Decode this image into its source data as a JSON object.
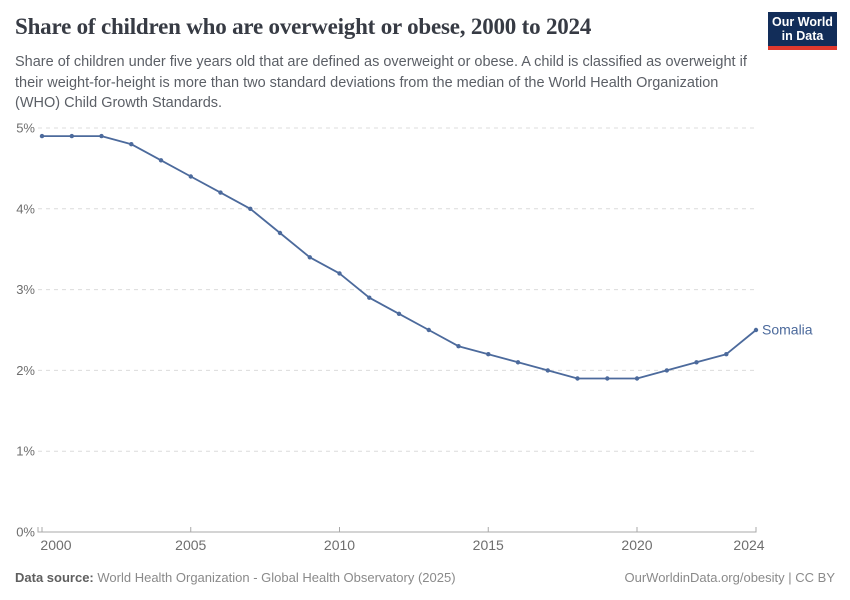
{
  "header": {
    "title": "Share of children who are overweight or obese, 2000 to 2024",
    "subtitle": "Share of children under five years old that are defined as overweight or obese. A child is classified as overweight if their weight-for-height is more than two standard deviations from the median of the World Health Organization (WHO) Child Growth Standards.",
    "logo": {
      "line1": "Our World",
      "line2": "in Data",
      "bg_color": "#122d59",
      "stripe_color": "#e0392e"
    }
  },
  "chart_data": {
    "type": "line",
    "title": "Share of children who are overweight or obese, 2000 to 2024",
    "x": [
      2000,
      2001,
      2002,
      2003,
      2004,
      2005,
      2006,
      2007,
      2008,
      2009,
      2010,
      2011,
      2012,
      2013,
      2014,
      2015,
      2016,
      2017,
      2018,
      2019,
      2020,
      2021,
      2022,
      2023,
      2024
    ],
    "series": [
      {
        "name": "Somalia",
        "color": "#4c6a9c",
        "values": [
          4.9,
          4.9,
          4.9,
          4.8,
          4.6,
          4.4,
          4.2,
          4.0,
          3.7,
          3.4,
          3.2,
          2.9,
          2.7,
          2.5,
          2.3,
          2.2,
          2.1,
          2.0,
          1.9,
          1.9,
          1.9,
          2.0,
          2.1,
          2.2,
          2.5
        ]
      }
    ],
    "xlabel": "",
    "ylabel": "",
    "xlim": [
      2000,
      2024
    ],
    "ylim": [
      0,
      5
    ],
    "x_ticks": [
      2000,
      2005,
      2010,
      2015,
      2020,
      2024
    ],
    "y_ticks": [
      0,
      1,
      2,
      3,
      4,
      5
    ],
    "y_tick_suffix": "%",
    "grid": "horizontal-dashed",
    "legend": "end-of-line-label",
    "style": {
      "grid_color": "#dcdcdc",
      "axis_color": "#a8a8a8",
      "tick_label_color": "#6e6e6e"
    }
  },
  "footer": {
    "source_label": "Data source:",
    "source_text": "World Health Organization - Global Health Observatory (2025)",
    "credit": "OurWorldinData.org/obesity | CC BY"
  }
}
